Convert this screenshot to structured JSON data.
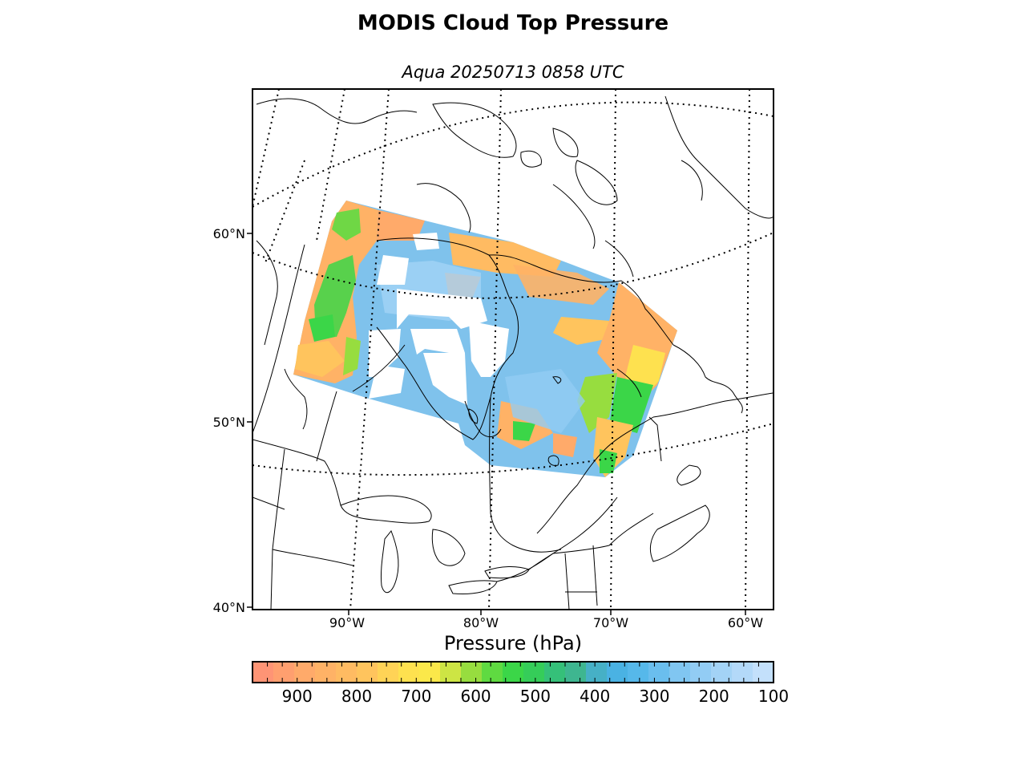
{
  "title": "MODIS Cloud Top Pressure",
  "subtitle": "Aqua 20250713 0858 UTC",
  "map": {
    "lat_labels": [
      "60°N",
      "50°N",
      "40°N"
    ],
    "lon_labels": [
      "90°W",
      "80°W",
      "70°W",
      "60°W"
    ]
  },
  "colorbar": {
    "label": "Pressure (hPa)",
    "ticks": [
      "900",
      "800",
      "700",
      "600",
      "500",
      "400",
      "300",
      "200",
      "100"
    ],
    "range_hpa": [
      975,
      100
    ],
    "colors": [
      "#fe9475",
      "#ff9f6f",
      "#ffaa6a",
      "#ffb266",
      "#ffbb62",
      "#ffc45d",
      "#ffd356",
      "#fee14f",
      "#fbe84a",
      "#cde544",
      "#97dd3f",
      "#5fda41",
      "#3bd648",
      "#35cd59",
      "#35c079",
      "#3eb690",
      "#46b0c6",
      "#4ab2e3",
      "#56b8ea",
      "#6abeee",
      "#80c6f1",
      "#92ccf4",
      "#a3d3f6",
      "#b3d9f9",
      "#c3e0fb"
    ]
  }
}
